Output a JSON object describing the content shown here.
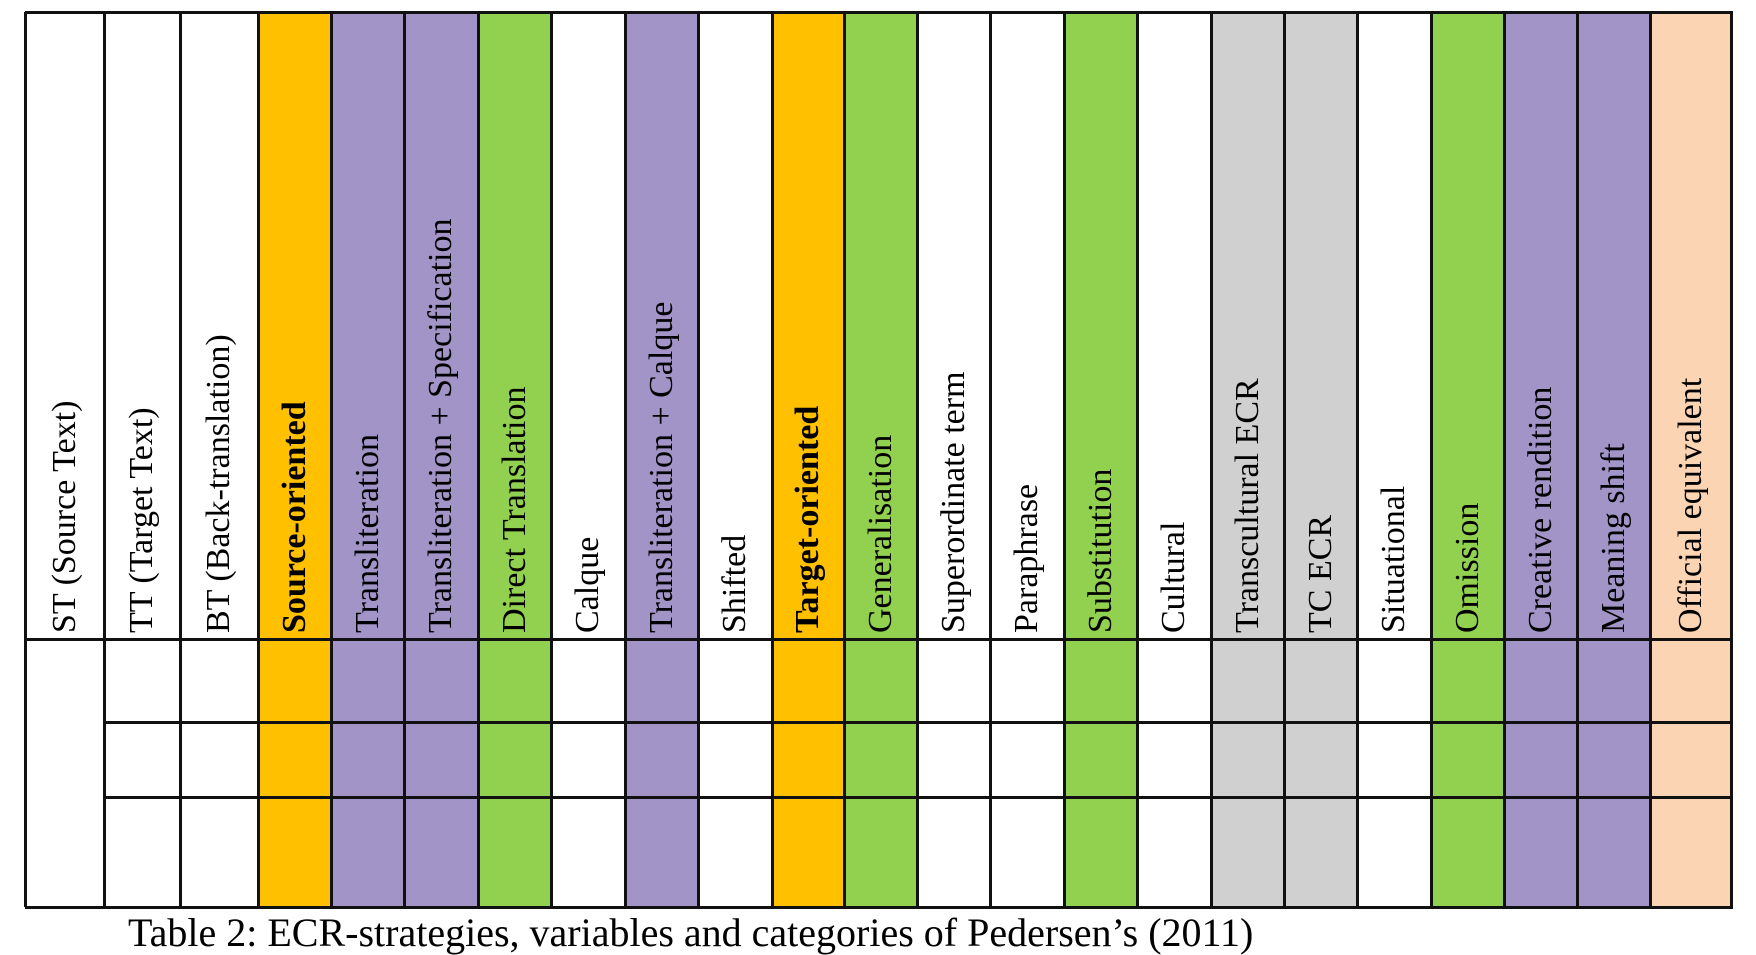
{
  "colors": {
    "purple": "#a294c6",
    "green": "#92d050",
    "orange": "#ffc000",
    "gray": "#d0d0d0",
    "peach": "#fbd4b4",
    "white": "#ffffff"
  },
  "table": {
    "columns": [
      {
        "label": "ST (Source Text)",
        "fill": "white",
        "bold": false
      },
      {
        "label": "TT (Target Text)",
        "fill": "white",
        "bold": false
      },
      {
        "label": "BT (Back-translation)",
        "fill": "white",
        "bold": false
      },
      {
        "label": "Source-oriented",
        "fill": "orange",
        "bold": true
      },
      {
        "label": "Transliteration",
        "fill": "purple",
        "bold": false
      },
      {
        "label": "Transliteration + Specification",
        "fill": "purple",
        "bold": false
      },
      {
        "label": "Direct Translation",
        "fill": "green",
        "bold": false
      },
      {
        "label": "Calque",
        "fill": "white",
        "bold": false
      },
      {
        "label": "Transliteration + Calque",
        "fill": "purple",
        "bold": false
      },
      {
        "label": "Shifted",
        "fill": "white",
        "bold": false
      },
      {
        "label": "Target-oriented",
        "fill": "orange",
        "bold": true
      },
      {
        "label": "Generalisation",
        "fill": "green",
        "bold": false
      },
      {
        "label": "Superordinate term",
        "fill": "white",
        "bold": false
      },
      {
        "label": "Paraphrase",
        "fill": "white",
        "bold": false
      },
      {
        "label": "Substitution",
        "fill": "green",
        "bold": false
      },
      {
        "label": "Cultural",
        "fill": "white",
        "bold": false
      },
      {
        "label": "Transcultural ECR",
        "fill": "gray",
        "bold": false
      },
      {
        "label": "TC ECR",
        "fill": "gray",
        "bold": false
      },
      {
        "label": "Situational",
        "fill": "white",
        "bold": false
      },
      {
        "label": "Omission",
        "fill": "green",
        "bold": false
      },
      {
        "label": "Creative rendition",
        "fill": "purple",
        "bold": false
      },
      {
        "label": "Meaning shift",
        "fill": "purple",
        "bold": false
      },
      {
        "label": "Official equivalent",
        "fill": "peach",
        "bold": false
      }
    ],
    "body_rows": 3
  },
  "caption": "Table 2: ECR-strategies, variables and categories of Pedersen’s (2011)"
}
